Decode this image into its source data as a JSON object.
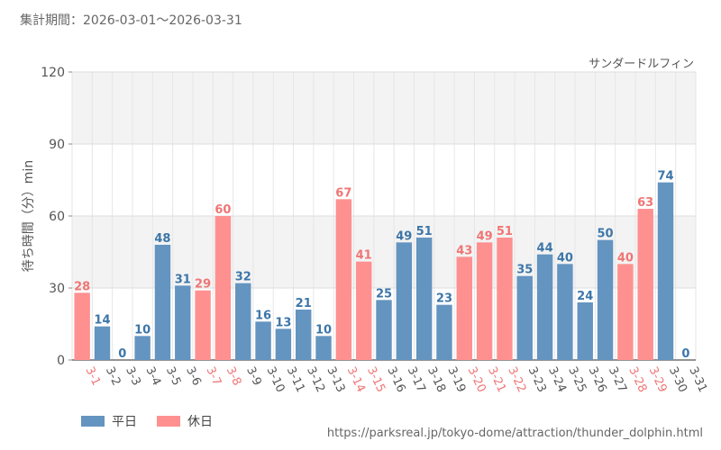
{
  "header": {
    "period_label": "集計期間：2026-03-01～2026-03-31",
    "attraction_name": "サンダードルフィン"
  },
  "footer": {
    "source_url": "https://parksreal.jp/tokyo-dome/attraction/thunder_dolphin.html"
  },
  "colors": {
    "weekday": "#6494c0",
    "holiday": "#ff9090",
    "weekday_label": "#3d76a8",
    "holiday_label": "#f07575"
  },
  "chart_data": {
    "type": "bar",
    "ylabel": "待ち時間（分）min",
    "ylim": [
      0,
      120
    ],
    "yticks": [
      0,
      30,
      60,
      90,
      120
    ],
    "categories": [
      "3-1",
      "3-2",
      "3-3",
      "3-4",
      "3-5",
      "3-6",
      "3-7",
      "3-8",
      "3-9",
      "3-10",
      "3-11",
      "3-12",
      "3-13",
      "3-14",
      "3-15",
      "3-16",
      "3-17",
      "3-18",
      "3-19",
      "3-20",
      "3-21",
      "3-22",
      "3-23",
      "3-24",
      "3-25",
      "3-26",
      "3-27",
      "3-28",
      "3-29",
      "3-30",
      "3-31"
    ],
    "values": [
      28,
      14,
      0,
      10,
      48,
      31,
      29,
      60,
      32,
      16,
      13,
      21,
      10,
      67,
      41,
      25,
      49,
      51,
      23,
      43,
      49,
      51,
      35,
      44,
      40,
      24,
      50,
      40,
      63,
      74,
      0
    ],
    "day_type": [
      "holiday",
      "weekday",
      "weekday",
      "weekday",
      "weekday",
      "weekday",
      "holiday",
      "holiday",
      "weekday",
      "weekday",
      "weekday",
      "weekday",
      "weekday",
      "holiday",
      "holiday",
      "weekday",
      "weekday",
      "weekday",
      "weekday",
      "holiday",
      "holiday",
      "holiday",
      "weekday",
      "weekday",
      "weekday",
      "weekday",
      "weekday",
      "holiday",
      "holiday",
      "weekday",
      "weekday"
    ],
    "legend": [
      {
        "key": "weekday",
        "label": "平日"
      },
      {
        "key": "holiday",
        "label": "休日"
      }
    ],
    "grid": true,
    "legend_position": "bottom-left"
  }
}
